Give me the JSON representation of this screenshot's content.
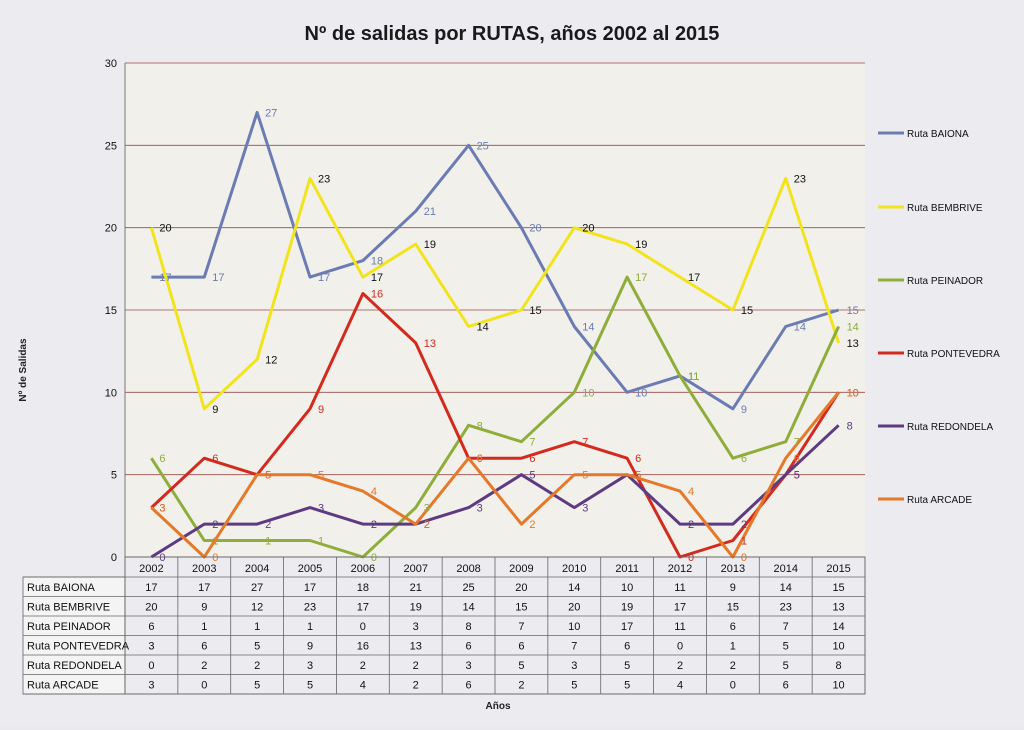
{
  "chart_data": {
    "type": "line",
    "title": "Nº de salidas por RUTAS, años 2002 al 2015",
    "ylabel": "Nº de Salidas",
    "xlabel": "Años",
    "ylim": [
      0,
      30
    ],
    "yticks": [
      0,
      5,
      10,
      15,
      20,
      25,
      30
    ],
    "grid": true,
    "legend_position": "right",
    "categories": [
      "2002",
      "2003",
      "2004",
      "2005",
      "2006",
      "2007",
      "2008",
      "2009",
      "2010",
      "2011",
      "2012",
      "2013",
      "2014",
      "2015"
    ],
    "series": [
      {
        "name": "Ruta BAIONA",
        "color": "#6b7bb3",
        "values": [
          17,
          17,
          27,
          17,
          18,
          21,
          25,
          20,
          14,
          10,
          11,
          9,
          14,
          15
        ]
      },
      {
        "name": "Ruta BEMBRIVE",
        "color": "#f2e41c",
        "values": [
          20,
          9,
          12,
          23,
          17,
          19,
          14,
          15,
          20,
          19,
          17,
          15,
          23,
          13
        ]
      },
      {
        "name": "Ruta PEINADOR",
        "color": "#8ead3a",
        "values": [
          6,
          1,
          1,
          1,
          0,
          3,
          8,
          7,
          10,
          17,
          11,
          6,
          7,
          14
        ]
      },
      {
        "name": "Ruta PONTEVEDRA",
        "color": "#d42a1e",
        "values": [
          3,
          6,
          5,
          9,
          16,
          13,
          6,
          6,
          7,
          6,
          0,
          1,
          5,
          10
        ]
      },
      {
        "name": "Ruta REDONDELA",
        "color": "#5e3a82",
        "values": [
          0,
          2,
          2,
          3,
          2,
          2,
          3,
          5,
          3,
          5,
          2,
          2,
          5,
          8
        ]
      },
      {
        "name": "Ruta ARCADE",
        "color": "#e6782a",
        "values": [
          3,
          0,
          5,
          5,
          4,
          2,
          6,
          2,
          5,
          5,
          4,
          0,
          6,
          10
        ]
      }
    ]
  }
}
